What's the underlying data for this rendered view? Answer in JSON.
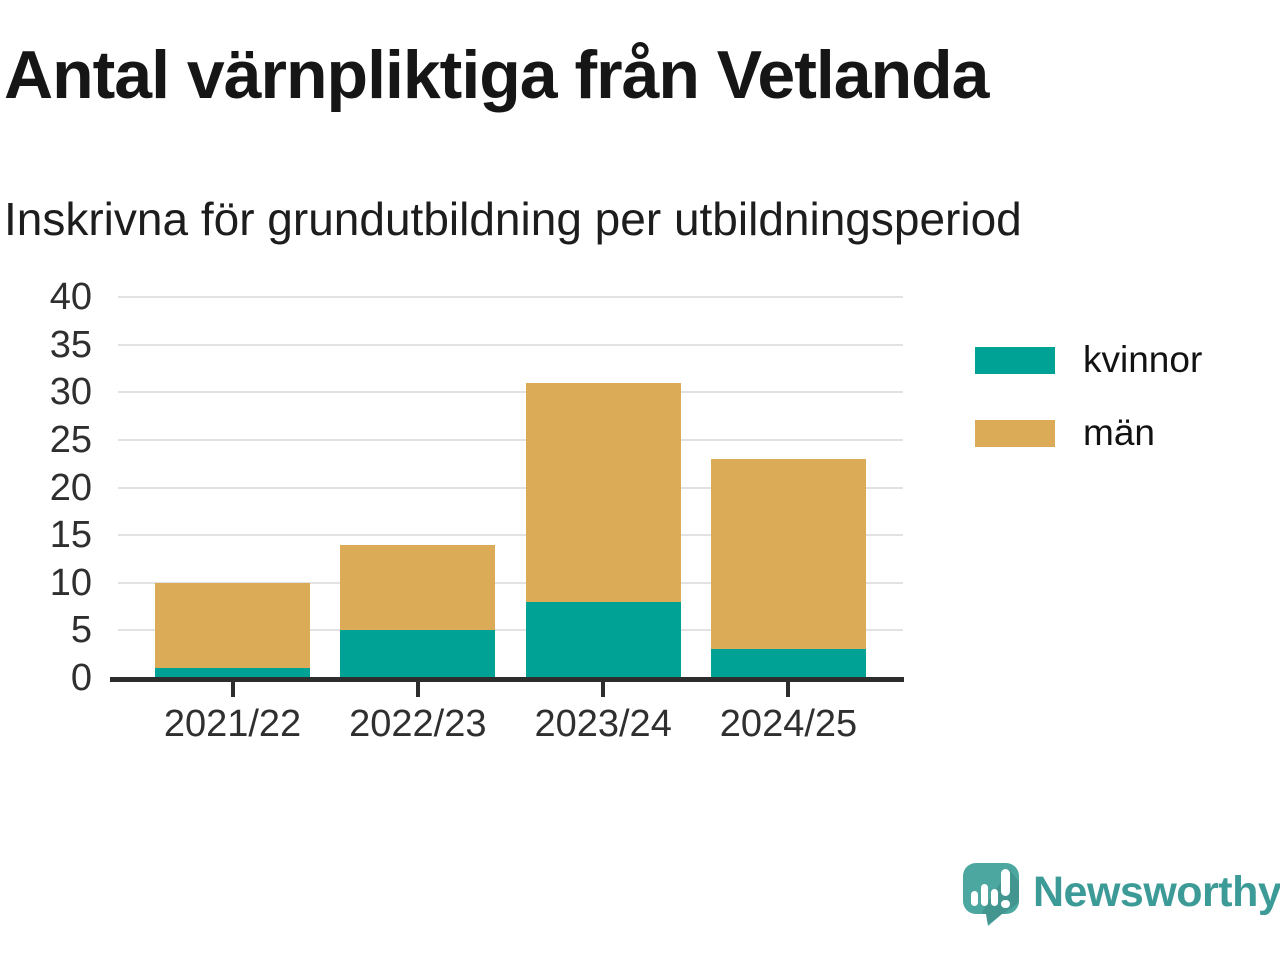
{
  "chart_data": {
    "type": "bar",
    "stacked": true,
    "title": "Antal värnpliktiga från Vetlanda",
    "subtitle": "Inskrivna för grundutbildning per utbildningsperiod",
    "categories": [
      "2021/22",
      "2022/23",
      "2023/24",
      "2024/25"
    ],
    "series": [
      {
        "name": "kvinnor",
        "color": "#00a296",
        "values": [
          1,
          5,
          8,
          3
        ]
      },
      {
        "name": "män",
        "color": "#dcab57",
        "values": [
          9,
          9,
          23,
          20
        ]
      }
    ],
    "totals": [
      10,
      14,
      31,
      23
    ],
    "xlabel": "",
    "ylabel": "",
    "ylim": [
      0,
      40
    ],
    "yticks": [
      0,
      5,
      10,
      15,
      20,
      25,
      30,
      35,
      40
    ],
    "grid": true,
    "legend_position": "right",
    "gridline_color": "#e2e2e2",
    "axis_color": "#2d2d2d",
    "tick_label_color": "#2f2f2f"
  },
  "branding": {
    "wordmark": "Newsworthy",
    "logo_icon": "speech-bubble-bar-chart-icon",
    "wordmark_color": "#3d9b97",
    "icon_color": "#4ba7a0"
  }
}
